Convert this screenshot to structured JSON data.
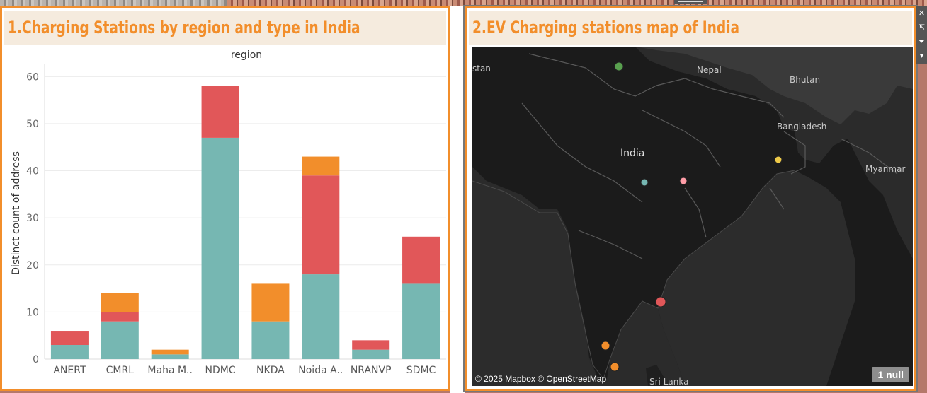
{
  "panel_left": {
    "title": "1.Charging Stations by region and type in India"
  },
  "panel_right": {
    "title": "2.EV Charging stations map of India"
  },
  "colors": {
    "teal": "#76b7b2",
    "red": "#e15759",
    "orange": "#f28e2b",
    "yellow": "#edc948",
    "pink": "#ff9da7",
    "green": "#59a14f",
    "accent": "#f28e2b",
    "title_bg": "#f5ebde"
  },
  "chart_data": {
    "type": "bar",
    "stacked": true,
    "title": "region",
    "ylabel": "Distinct count of address",
    "xlabel": "",
    "categories": [
      "ANERT",
      "CMRL",
      "Maha M..",
      "NDMC",
      "NKDA",
      "Noida A..",
      "NRANVP",
      "SDMC"
    ],
    "ylim": [
      0,
      62
    ],
    "yticks": [
      0,
      10,
      20,
      30,
      40,
      50,
      60
    ],
    "grid": true,
    "series": [
      {
        "color": "#76b7b2",
        "values": [
          3,
          8,
          1,
          47,
          8,
          18,
          2,
          16
        ]
      },
      {
        "color": "#e15759",
        "values": [
          3,
          2,
          0,
          11,
          0,
          21,
          2,
          10
        ]
      },
      {
        "color": "#f28e2b",
        "values": [
          0,
          4,
          1,
          0,
          8,
          4,
          0,
          0
        ]
      }
    ]
  },
  "map": {
    "labels": [
      "Nepal",
      "Bhutan",
      "Bangladesh",
      "India",
      "Myanmar",
      "Sri Lanka",
      "stan"
    ],
    "attribution": "© 2025 Mapbox © OpenStreetMap",
    "null_badge": "1 null",
    "markers": [
      "green",
      "teal",
      "pink",
      "yellow",
      "red",
      "orange",
      "orange"
    ]
  },
  "toolbar": {
    "icons": [
      "close-icon",
      "popout-icon",
      "filter-icon",
      "dropdown-icon"
    ]
  }
}
